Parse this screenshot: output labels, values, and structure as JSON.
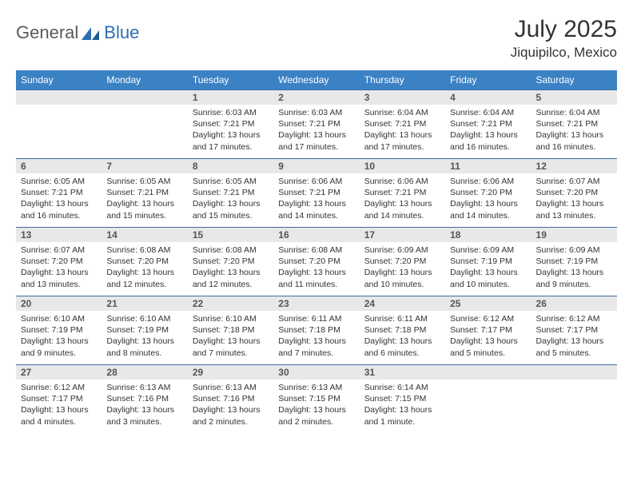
{
  "brand": {
    "name1": "General",
    "name2": "Blue"
  },
  "title": {
    "month": "July 2025",
    "location": "Jiquipilco, Mexico"
  },
  "colors": {
    "header_bg": "#3b82c4",
    "header_text": "#ffffff",
    "daynum_bg": "#e8e8e8",
    "daynum_text": "#555555",
    "body_text": "#333333",
    "rule": "#3b6fa0",
    "logo_gray": "#5a5a5a",
    "logo_blue": "#2c6fb0"
  },
  "weekdays": [
    "Sunday",
    "Monday",
    "Tuesday",
    "Wednesday",
    "Thursday",
    "Friday",
    "Saturday"
  ],
  "weeks": [
    [
      null,
      null,
      {
        "n": "1",
        "sr": "Sunrise: 6:03 AM",
        "ss": "Sunset: 7:21 PM",
        "d1": "Daylight: 13 hours",
        "d2": "and 17 minutes."
      },
      {
        "n": "2",
        "sr": "Sunrise: 6:03 AM",
        "ss": "Sunset: 7:21 PM",
        "d1": "Daylight: 13 hours",
        "d2": "and 17 minutes."
      },
      {
        "n": "3",
        "sr": "Sunrise: 6:04 AM",
        "ss": "Sunset: 7:21 PM",
        "d1": "Daylight: 13 hours",
        "d2": "and 17 minutes."
      },
      {
        "n": "4",
        "sr": "Sunrise: 6:04 AM",
        "ss": "Sunset: 7:21 PM",
        "d1": "Daylight: 13 hours",
        "d2": "and 16 minutes."
      },
      {
        "n": "5",
        "sr": "Sunrise: 6:04 AM",
        "ss": "Sunset: 7:21 PM",
        "d1": "Daylight: 13 hours",
        "d2": "and 16 minutes."
      }
    ],
    [
      {
        "n": "6",
        "sr": "Sunrise: 6:05 AM",
        "ss": "Sunset: 7:21 PM",
        "d1": "Daylight: 13 hours",
        "d2": "and 16 minutes."
      },
      {
        "n": "7",
        "sr": "Sunrise: 6:05 AM",
        "ss": "Sunset: 7:21 PM",
        "d1": "Daylight: 13 hours",
        "d2": "and 15 minutes."
      },
      {
        "n": "8",
        "sr": "Sunrise: 6:05 AM",
        "ss": "Sunset: 7:21 PM",
        "d1": "Daylight: 13 hours",
        "d2": "and 15 minutes."
      },
      {
        "n": "9",
        "sr": "Sunrise: 6:06 AM",
        "ss": "Sunset: 7:21 PM",
        "d1": "Daylight: 13 hours",
        "d2": "and 14 minutes."
      },
      {
        "n": "10",
        "sr": "Sunrise: 6:06 AM",
        "ss": "Sunset: 7:21 PM",
        "d1": "Daylight: 13 hours",
        "d2": "and 14 minutes."
      },
      {
        "n": "11",
        "sr": "Sunrise: 6:06 AM",
        "ss": "Sunset: 7:20 PM",
        "d1": "Daylight: 13 hours",
        "d2": "and 14 minutes."
      },
      {
        "n": "12",
        "sr": "Sunrise: 6:07 AM",
        "ss": "Sunset: 7:20 PM",
        "d1": "Daylight: 13 hours",
        "d2": "and 13 minutes."
      }
    ],
    [
      {
        "n": "13",
        "sr": "Sunrise: 6:07 AM",
        "ss": "Sunset: 7:20 PM",
        "d1": "Daylight: 13 hours",
        "d2": "and 13 minutes."
      },
      {
        "n": "14",
        "sr": "Sunrise: 6:08 AM",
        "ss": "Sunset: 7:20 PM",
        "d1": "Daylight: 13 hours",
        "d2": "and 12 minutes."
      },
      {
        "n": "15",
        "sr": "Sunrise: 6:08 AM",
        "ss": "Sunset: 7:20 PM",
        "d1": "Daylight: 13 hours",
        "d2": "and 12 minutes."
      },
      {
        "n": "16",
        "sr": "Sunrise: 6:08 AM",
        "ss": "Sunset: 7:20 PM",
        "d1": "Daylight: 13 hours",
        "d2": "and 11 minutes."
      },
      {
        "n": "17",
        "sr": "Sunrise: 6:09 AM",
        "ss": "Sunset: 7:20 PM",
        "d1": "Daylight: 13 hours",
        "d2": "and 10 minutes."
      },
      {
        "n": "18",
        "sr": "Sunrise: 6:09 AM",
        "ss": "Sunset: 7:19 PM",
        "d1": "Daylight: 13 hours",
        "d2": "and 10 minutes."
      },
      {
        "n": "19",
        "sr": "Sunrise: 6:09 AM",
        "ss": "Sunset: 7:19 PM",
        "d1": "Daylight: 13 hours",
        "d2": "and 9 minutes."
      }
    ],
    [
      {
        "n": "20",
        "sr": "Sunrise: 6:10 AM",
        "ss": "Sunset: 7:19 PM",
        "d1": "Daylight: 13 hours",
        "d2": "and 9 minutes."
      },
      {
        "n": "21",
        "sr": "Sunrise: 6:10 AM",
        "ss": "Sunset: 7:19 PM",
        "d1": "Daylight: 13 hours",
        "d2": "and 8 minutes."
      },
      {
        "n": "22",
        "sr": "Sunrise: 6:10 AM",
        "ss": "Sunset: 7:18 PM",
        "d1": "Daylight: 13 hours",
        "d2": "and 7 minutes."
      },
      {
        "n": "23",
        "sr": "Sunrise: 6:11 AM",
        "ss": "Sunset: 7:18 PM",
        "d1": "Daylight: 13 hours",
        "d2": "and 7 minutes."
      },
      {
        "n": "24",
        "sr": "Sunrise: 6:11 AM",
        "ss": "Sunset: 7:18 PM",
        "d1": "Daylight: 13 hours",
        "d2": "and 6 minutes."
      },
      {
        "n": "25",
        "sr": "Sunrise: 6:12 AM",
        "ss": "Sunset: 7:17 PM",
        "d1": "Daylight: 13 hours",
        "d2": "and 5 minutes."
      },
      {
        "n": "26",
        "sr": "Sunrise: 6:12 AM",
        "ss": "Sunset: 7:17 PM",
        "d1": "Daylight: 13 hours",
        "d2": "and 5 minutes."
      }
    ],
    [
      {
        "n": "27",
        "sr": "Sunrise: 6:12 AM",
        "ss": "Sunset: 7:17 PM",
        "d1": "Daylight: 13 hours",
        "d2": "and 4 minutes."
      },
      {
        "n": "28",
        "sr": "Sunrise: 6:13 AM",
        "ss": "Sunset: 7:16 PM",
        "d1": "Daylight: 13 hours",
        "d2": "and 3 minutes."
      },
      {
        "n": "29",
        "sr": "Sunrise: 6:13 AM",
        "ss": "Sunset: 7:16 PM",
        "d1": "Daylight: 13 hours",
        "d2": "and 2 minutes."
      },
      {
        "n": "30",
        "sr": "Sunrise: 6:13 AM",
        "ss": "Sunset: 7:15 PM",
        "d1": "Daylight: 13 hours",
        "d2": "and 2 minutes."
      },
      {
        "n": "31",
        "sr": "Sunrise: 6:14 AM",
        "ss": "Sunset: 7:15 PM",
        "d1": "Daylight: 13 hours",
        "d2": "and 1 minute."
      },
      null,
      null
    ]
  ]
}
